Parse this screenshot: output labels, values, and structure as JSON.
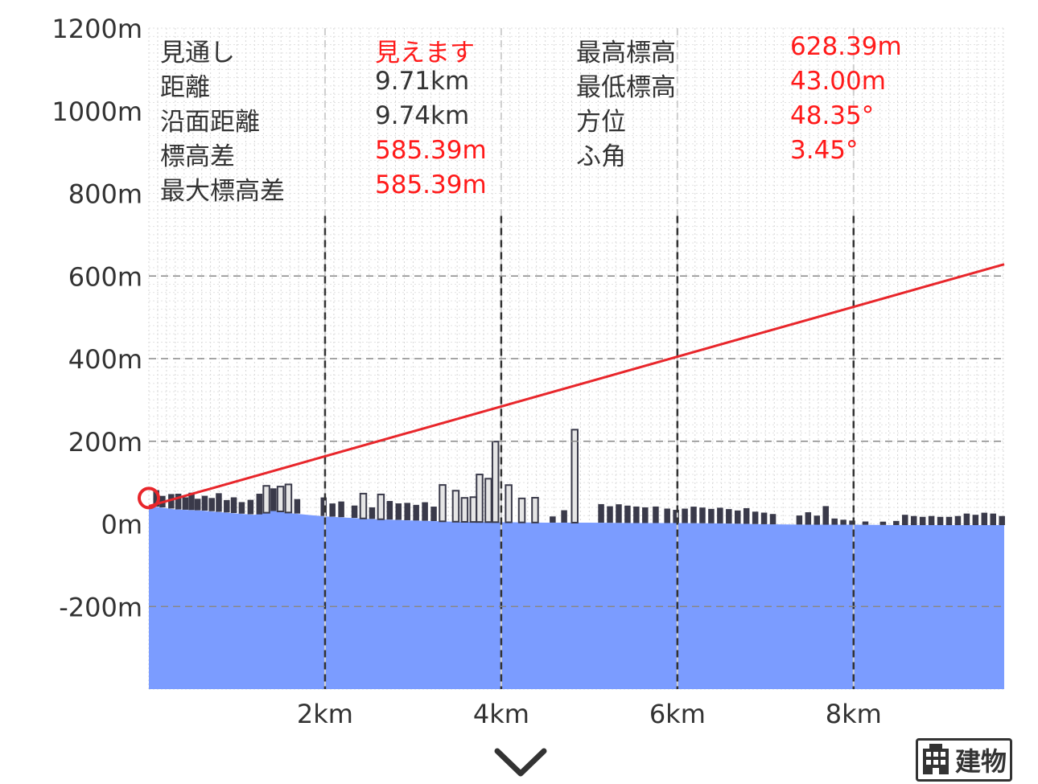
{
  "info": {
    "rows": [
      {
        "label": "見通し",
        "value": "見えます",
        "value_red": true
      },
      {
        "label": "距離",
        "value": "9.71km",
        "value_red": false
      },
      {
        "label": "沿面距離",
        "value": "9.74km",
        "value_red": false
      },
      {
        "label": "標高差",
        "value": "585.39m",
        "value_red": true
      },
      {
        "label": "最大標高差",
        "value": "585.39m",
        "value_red": true
      }
    ],
    "rows_right": [
      {
        "label": "最高標高",
        "value": "628.39m"
      },
      {
        "label": "最低標高",
        "value": "43.00m"
      },
      {
        "label": "方位",
        "value": "48.35°"
      },
      {
        "label": "ふ角",
        "value": "3.45°"
      }
    ]
  },
  "colors": {
    "terrain": "#7b9cff",
    "line_of_sight": "#e8262b",
    "buildings": "#3a3a4a",
    "highlight_building": "#e6e6e6",
    "value_red": "#ff1a1a"
  },
  "chart_data": {
    "type": "area",
    "y_ticks": [
      "1200m",
      "1000m",
      "800m",
      "600m",
      "400m",
      "200m",
      "0m",
      "-200m"
    ],
    "x_ticks": [
      "2km",
      "4km",
      "6km",
      "8km"
    ],
    "ylim": [
      -400,
      1200
    ],
    "xlim": [
      0,
      9.71
    ],
    "grid": true,
    "line_of_sight": {
      "x": [
        0,
        9.71
      ],
      "y": [
        43,
        628.39
      ]
    },
    "terrain_profile": {
      "x": [
        0,
        0.3,
        0.6,
        1.0,
        1.2,
        1.4,
        1.6,
        1.8,
        2.0,
        2.5,
        3.0,
        3.5,
        4.0,
        4.5,
        5.0,
        5.5,
        6.0,
        6.5,
        7.0,
        7.5,
        8.0,
        8.5,
        9.0,
        9.71
      ],
      "y": [
        43,
        35,
        32,
        25,
        22,
        32,
        26,
        22,
        18,
        12,
        8,
        5,
        4,
        3,
        3,
        2,
        2,
        1,
        -1,
        -2,
        -2,
        -3,
        -3,
        -3
      ]
    },
    "buildings": [
      {
        "x": 0.05,
        "h": 40
      },
      {
        "x": 0.12,
        "h": 28
      },
      {
        "x": 0.22,
        "h": 35
      },
      {
        "x": 0.3,
        "h": 38
      },
      {
        "x": 0.38,
        "h": 30
      },
      {
        "x": 0.45,
        "h": 42
      },
      {
        "x": 0.52,
        "h": 28
      },
      {
        "x": 0.6,
        "h": 36
      },
      {
        "x": 0.68,
        "h": 32
      },
      {
        "x": 0.76,
        "h": 45
      },
      {
        "x": 0.85,
        "h": 30
      },
      {
        "x": 0.93,
        "h": 38
      },
      {
        "x": 1.02,
        "h": 28
      },
      {
        "x": 1.12,
        "h": 35
      },
      {
        "x": 1.22,
        "h": 50
      },
      {
        "x": 1.3,
        "h": 65
      },
      {
        "x": 1.38,
        "h": 55
      },
      {
        "x": 1.46,
        "h": 60
      },
      {
        "x": 1.55,
        "h": 68
      },
      {
        "x": 1.65,
        "h": 35
      },
      {
        "x": 1.95,
        "h": 45
      },
      {
        "x": 2.05,
        "h": 32
      },
      {
        "x": 2.15,
        "h": 38
      },
      {
        "x": 2.3,
        "h": 30
      },
      {
        "x": 2.4,
        "h": 60
      },
      {
        "x": 2.5,
        "h": 28
      },
      {
        "x": 2.6,
        "h": 60
      },
      {
        "x": 2.7,
        "h": 45
      },
      {
        "x": 2.8,
        "h": 40
      },
      {
        "x": 2.9,
        "h": 42
      },
      {
        "x": 3.0,
        "h": 38
      },
      {
        "x": 3.1,
        "h": 45
      },
      {
        "x": 3.2,
        "h": 35
      },
      {
        "x": 3.3,
        "h": 88
      },
      {
        "x": 3.45,
        "h": 75
      },
      {
        "x": 3.55,
        "h": 58
      },
      {
        "x": 3.65,
        "h": 60
      },
      {
        "x": 3.72,
        "h": 115
      },
      {
        "x": 3.82,
        "h": 105
      },
      {
        "x": 3.9,
        "h": 195
      },
      {
        "x": 4.05,
        "h": 90
      },
      {
        "x": 4.2,
        "h": 58
      },
      {
        "x": 4.35,
        "h": 60
      },
      {
        "x": 4.55,
        "h": 15
      },
      {
        "x": 4.68,
        "h": 30
      },
      {
        "x": 4.8,
        "h": 225
      },
      {
        "x": 5.1,
        "h": 45
      },
      {
        "x": 5.2,
        "h": 40
      },
      {
        "x": 5.3,
        "h": 45
      },
      {
        "x": 5.4,
        "h": 42
      },
      {
        "x": 5.5,
        "h": 40
      },
      {
        "x": 5.6,
        "h": 38
      },
      {
        "x": 5.72,
        "h": 40
      },
      {
        "x": 5.85,
        "h": 35
      },
      {
        "x": 5.95,
        "h": 32
      },
      {
        "x": 6.05,
        "h": 35
      },
      {
        "x": 6.15,
        "h": 40
      },
      {
        "x": 6.25,
        "h": 38
      },
      {
        "x": 6.35,
        "h": 35
      },
      {
        "x": 6.45,
        "h": 38
      },
      {
        "x": 6.55,
        "h": 35
      },
      {
        "x": 6.65,
        "h": 32
      },
      {
        "x": 6.75,
        "h": 38
      },
      {
        "x": 6.85,
        "h": 30
      },
      {
        "x": 6.95,
        "h": 28
      },
      {
        "x": 7.05,
        "h": 25
      },
      {
        "x": 7.35,
        "h": 22
      },
      {
        "x": 7.45,
        "h": 30
      },
      {
        "x": 7.55,
        "h": 22
      },
      {
        "x": 7.65,
        "h": 45
      },
      {
        "x": 7.75,
        "h": 15
      },
      {
        "x": 7.85,
        "h": 12
      },
      {
        "x": 7.95,
        "h": 10
      },
      {
        "x": 8.1,
        "h": 8
      },
      {
        "x": 8.3,
        "h": 8
      },
      {
        "x": 8.45,
        "h": 10
      },
      {
        "x": 8.55,
        "h": 25
      },
      {
        "x": 8.65,
        "h": 22
      },
      {
        "x": 8.75,
        "h": 20
      },
      {
        "x": 8.85,
        "h": 22
      },
      {
        "x": 8.95,
        "h": 20
      },
      {
        "x": 9.05,
        "h": 20
      },
      {
        "x": 9.15,
        "h": 22
      },
      {
        "x": 9.25,
        "h": 28
      },
      {
        "x": 9.35,
        "h": 25
      },
      {
        "x": 9.45,
        "h": 30
      },
      {
        "x": 9.55,
        "h": 28
      },
      {
        "x": 9.65,
        "h": 22
      }
    ]
  },
  "buttons": {
    "building_label": "建物",
    "chevron_icon": "chevron-down-icon",
    "building_icon": "building-icon"
  }
}
